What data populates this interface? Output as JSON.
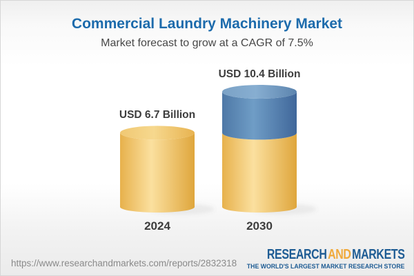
{
  "header": {
    "title": "Commercial Laundry Machinery Market",
    "subtitle": "Market forecast to grow at a CAGR of 7.5%"
  },
  "chart_data": {
    "type": "bar",
    "style": "3d-cylinder-stacked",
    "title": "Commercial Laundry Machinery Market",
    "subtitle": "Market forecast to grow at a CAGR of 7.5%",
    "unit": "USD Billion",
    "cagr_percent": 7.5,
    "categories": [
      "2024",
      "2030"
    ],
    "values": [
      6.7,
      10.4
    ],
    "value_labels": [
      "USD 6.7 Billion",
      "USD 10.4 Billion"
    ],
    "ylim": [
      0,
      10.4
    ],
    "grid": false,
    "legend": false,
    "bars": [
      {
        "category": "2024",
        "total": 6.7,
        "segments": [
          {
            "color": "gold",
            "value": 6.7
          }
        ]
      },
      {
        "category": "2030",
        "total": 10.4,
        "segments": [
          {
            "color": "gold",
            "value": 6.7
          },
          {
            "color": "blue",
            "value": 3.7
          }
        ]
      }
    ],
    "colors": {
      "gold": "#F2C96F",
      "blue": "#5D8BB8"
    }
  },
  "footer": {
    "url": "https://www.researchandmarkets.com/reports/2832318",
    "logo": {
      "research": "RESEARCH",
      "and": "AND",
      "markets": "MARKETS",
      "tagline": "THE WORLD'S LARGEST MARKET RESEARCH STORE",
      "colors": {
        "navy": "#1E5C94",
        "orange": "#F0A93B"
      }
    }
  },
  "colors": {
    "titleBlue": "#1C6BAC",
    "textDark": "#3D3D3D",
    "urlGray": "#8A8A8A",
    "logoNavy": "#1E5C94",
    "logoOrange": "#F0A93B"
  }
}
